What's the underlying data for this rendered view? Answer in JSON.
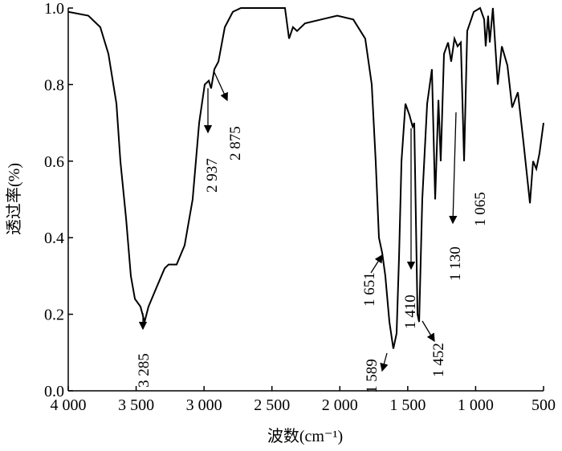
{
  "chart_data": {
    "type": "line",
    "xlabel": "波数(cm⁻¹)",
    "ylabel": "透过率(%)",
    "xlim": [
      4000,
      500
    ],
    "ylim": [
      0,
      1.0
    ],
    "xticks": [
      {
        "value": 4000,
        "label": "4 000"
      },
      {
        "value": 3500,
        "label": "3 500"
      },
      {
        "value": 3000,
        "label": "3 000"
      },
      {
        "value": 2500,
        "label": "2 500"
      },
      {
        "value": 2000,
        "label": "2 000"
      },
      {
        "value": 1500,
        "label": "1 500"
      },
      {
        "value": 1000,
        "label": "1 000"
      },
      500
    ],
    "yticks": [
      {
        "value": 0,
        "label": "0.0"
      },
      0.2,
      0.4,
      0.6,
      0.8,
      {
        "value": 1,
        "label": "1.0"
      }
    ],
    "annotations": [
      "3 285",
      "2 937",
      "2 875",
      "1 651",
      "1 589",
      "1 410",
      "1 452",
      "1 130",
      "1 065"
    ],
    "series": [
      {
        "color": "#000000",
        "x": [
          4000,
          3852,
          3764,
          3704,
          3645,
          3616,
          3574,
          3539,
          3509,
          3468,
          3438,
          3409,
          3350,
          3290,
          3261,
          3202,
          3143,
          3084,
          3036,
          2995,
          2965,
          2948,
          2924,
          2894,
          2847,
          2788,
          2729,
          2404,
          2374,
          2345,
          2315,
          2256,
          2138,
          2019,
          1901,
          1813,
          1765,
          1736,
          1712,
          1688,
          1665,
          1635,
          1606,
          1582,
          1564,
          1546,
          1517,
          1487,
          1464,
          1452,
          1428,
          1416,
          1393,
          1357,
          1322,
          1298,
          1274,
          1257,
          1233,
          1203,
          1180,
          1156,
          1133,
          1109,
          1085,
          1062,
          1014,
          967,
          937,
          926,
          908,
          896,
          873,
          837,
          807,
          766,
          731,
          689,
          648,
          618,
          600,
          577,
          553,
          530,
          500
        ],
        "values": [
          0.99,
          0.98,
          0.95,
          0.88,
          0.75,
          0.6,
          0.45,
          0.3,
          0.24,
          0.22,
          0.18,
          0.22,
          0.27,
          0.32,
          0.33,
          0.33,
          0.38,
          0.5,
          0.7,
          0.8,
          0.81,
          0.79,
          0.84,
          0.86,
          0.95,
          0.99,
          1.0,
          1.0,
          0.92,
          0.95,
          0.94,
          0.96,
          0.97,
          0.98,
          0.97,
          0.92,
          0.8,
          0.6,
          0.4,
          0.36,
          0.3,
          0.18,
          0.11,
          0.15,
          0.35,
          0.6,
          0.75,
          0.72,
          0.69,
          0.7,
          0.2,
          0.18,
          0.5,
          0.75,
          0.84,
          0.5,
          0.76,
          0.6,
          0.88,
          0.91,
          0.86,
          0.92,
          0.9,
          0.91,
          0.6,
          0.94,
          0.99,
          1.0,
          0.97,
          0.9,
          0.98,
          0.91,
          1.0,
          0.8,
          0.9,
          0.85,
          0.74,
          0.78,
          0.65,
          0.55,
          0.49,
          0.6,
          0.58,
          0.62,
          0.7
        ]
      }
    ]
  }
}
